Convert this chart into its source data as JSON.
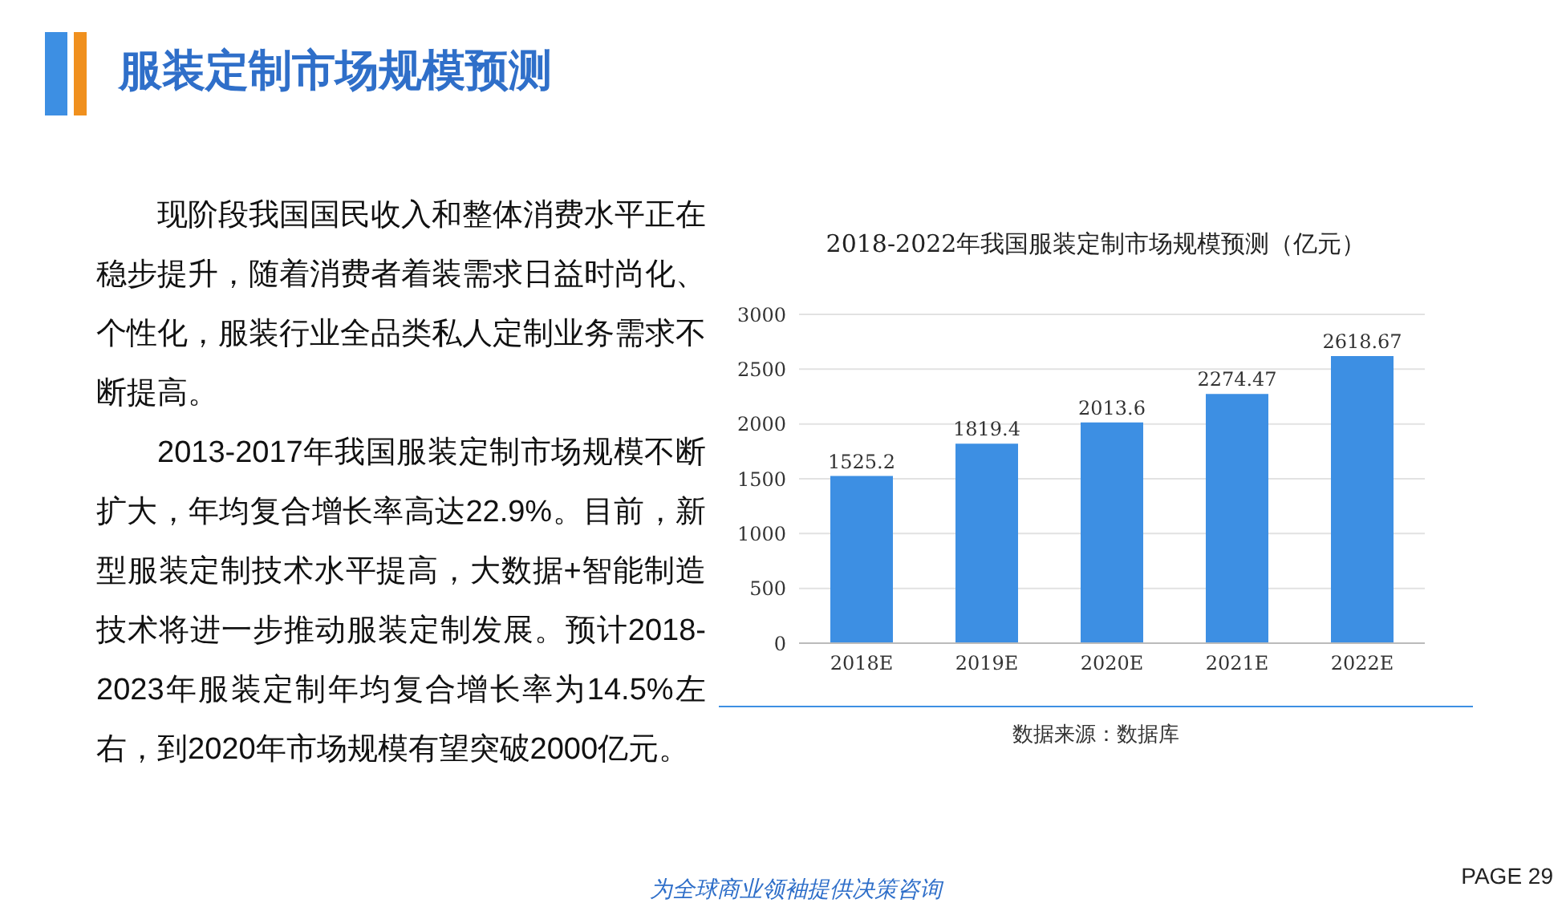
{
  "chart_data": {
    "type": "bar",
    "title": "服装定制市场规模预测",
    "subtitle": "2018-2022年我国服装定制市场规模预测（亿元）",
    "categories": [
      "2018E",
      "2019E",
      "2020E",
      "2021E",
      "2022E"
    ],
    "values": [
      1525.2,
      1819.4,
      2013.6,
      2274.47,
      2618.67
    ],
    "color": "#3d8fe3",
    "ylim": [
      0,
      3000
    ],
    "yticks": [
      0,
      500,
      1000,
      1500,
      2000,
      2500,
      3000
    ],
    "grid": "y",
    "data_labels": true,
    "annotations": [
      "现阶段我国国民收入和整体消费水平正在稳步提升，随着消费者着装需求日益时尚化、个性化，服装行业全品类私人定制业务需求不断提高。",
      "2013-2017年我国服装定制市场规模不断扩大，年均复合增长率高达22.9%。目前，新型服装定制技术水平提高，大数据+智能制造技术将进一步推动服装定制发展。预计2018-2023年服装定制年均复合增长率为14.5%左右，到2020年市场规模有望突破2000亿元。",
      "数据来源：数据库",
      "为全球商业领袖提供决策咨询",
      "PAGE 29"
    ]
  }
}
